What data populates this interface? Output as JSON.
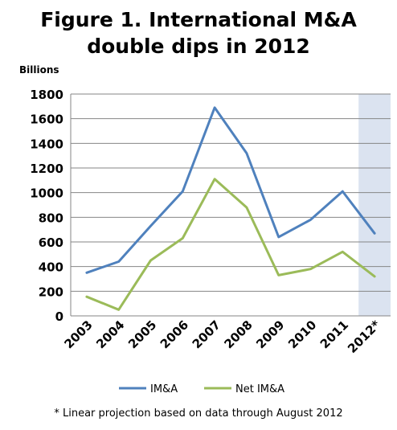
{
  "title_line1": "Figure 1. International  M&A",
  "title_line2": "double dips in 2012",
  "footnote": "* Linear projection based on data through August 2012",
  "chart_data": {
    "type": "line",
    "title": "Figure 1. International  M&A double dips in 2012",
    "ylabel": "Billions",
    "xlabel": "",
    "ylim": [
      0,
      1800
    ],
    "yticks": [
      0,
      200,
      400,
      600,
      800,
      1000,
      1200,
      1400,
      1600,
      1800
    ],
    "categories": [
      "2003",
      "2004",
      "2005",
      "2006",
      "2007",
      "2008",
      "2009",
      "2010",
      "2011",
      "2012*"
    ],
    "series": [
      {
        "name": "IM&A",
        "color": "#4f81bd",
        "values": [
          350,
          440,
          730,
          1010,
          1690,
          1320,
          640,
          780,
          1010,
          670
        ]
      },
      {
        "name": "Net IM&A",
        "color": "#9bbb59",
        "values": [
          155,
          50,
          450,
          630,
          1110,
          880,
          330,
          380,
          520,
          320
        ]
      }
    ],
    "grid": true,
    "highlight_category": "2012*",
    "highlight_color": "#dbe3f0",
    "legend_position": "bottom"
  }
}
